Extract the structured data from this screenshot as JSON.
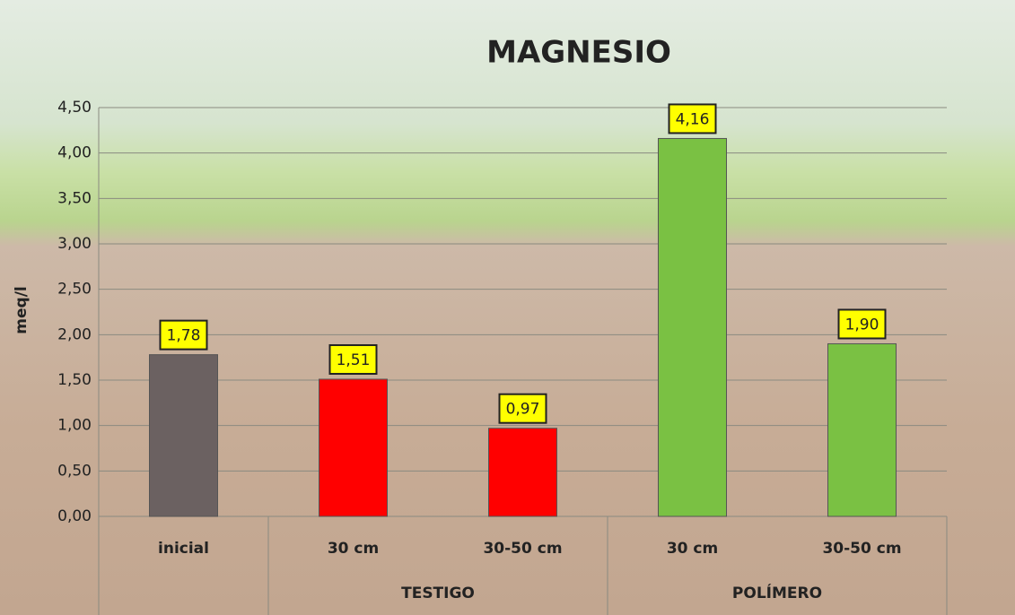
{
  "chart_data": {
    "type": "bar",
    "title": "MAGNESIO",
    "y_label": "meq/l",
    "categories": [
      "inicial",
      "30 cm",
      "30-50 cm",
      "30 cm",
      "30-50 cm"
    ],
    "groups": [
      null,
      "TESTIGO",
      "TESTIGO",
      "POLÍMERO",
      "POLÍMERO"
    ],
    "values": [
      1.78,
      1.51,
      0.97,
      4.16,
      1.9
    ],
    "value_labels": [
      "1,78",
      "1,51",
      "0,97",
      "4,16",
      "1,90"
    ],
    "colors": [
      "#6b6161",
      "#ff0000",
      "#ff0000",
      "#7ac143",
      "#7ac143"
    ],
    "ylim": [
      0,
      4.5
    ],
    "yticks": [
      {
        "value": 0,
        "label": "0,00"
      },
      {
        "value": 0.5,
        "label": "0,50"
      },
      {
        "value": 1,
        "label": "1,00"
      },
      {
        "value": 1.5,
        "label": "1,50"
      },
      {
        "value": 2,
        "label": "2,00"
      },
      {
        "value": 2.5,
        "label": "2,50"
      },
      {
        "value": 3,
        "label": "3,00"
      },
      {
        "value": 3.5,
        "label": "3,50"
      },
      {
        "value": 4,
        "label": "4,00"
      },
      {
        "value": 4.5,
        "label": "4,50"
      }
    ],
    "grid": true
  }
}
